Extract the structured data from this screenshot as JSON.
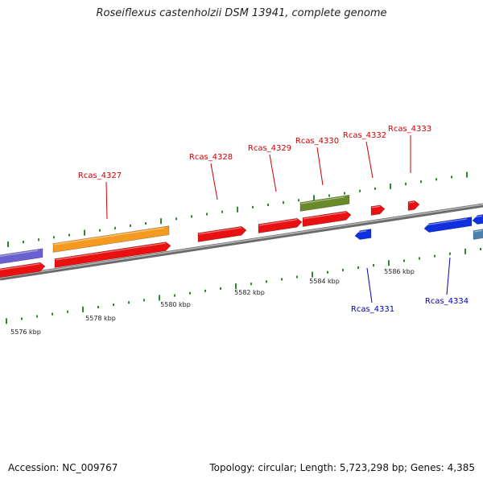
{
  "title": "Roseiflexus castenholzii DSM 13941, complete genome",
  "footer": {
    "accession": "Accession: NC_009767",
    "summary": "Topology: circular; Length: 5,723,298 bp; Genes: 4,385"
  },
  "colors": {
    "backbone": "#808080",
    "forward_label": "#cc0000",
    "reverse_label": "#0000bb",
    "tick": "#2a8a2a",
    "cds_forward": "#e81010",
    "cds_reverse": "#1030e0",
    "orange_feature": "#f59a20",
    "green_feature": "#6a8a2a",
    "purple_feature": "#6a60d0",
    "steel_feature": "#4a80b0"
  },
  "scale_labels": [
    "5576 kbp",
    "5578 kbp",
    "5580 kbp",
    "5582 kbp",
    "5584 kbp",
    "5586 kbp"
  ],
  "gene_labels_forward": [
    "Rcas_4327",
    "Rcas_4328",
    "Rcas_4329",
    "Rcas_4330",
    "Rcas_4332",
    "Rcas_4333"
  ],
  "gene_labels_reverse": [
    "Rcas_4331",
    "Rcas_4334"
  ]
}
